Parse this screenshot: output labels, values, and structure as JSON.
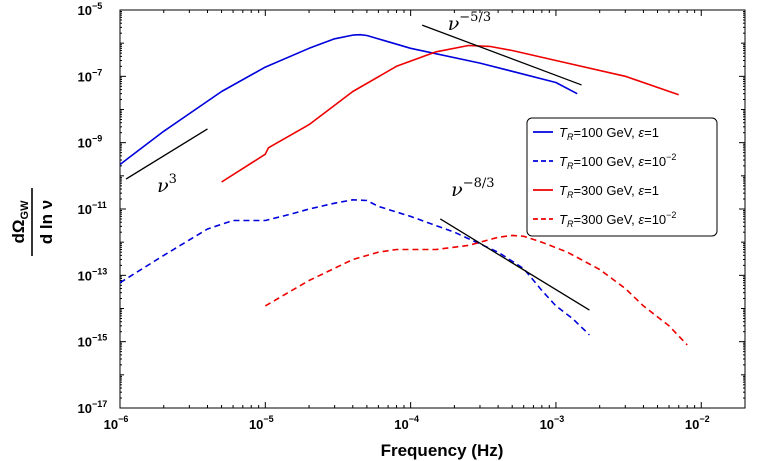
{
  "chart_data": {
    "type": "line",
    "xlabel": "Frequency (Hz)",
    "ylabel": {
      "numerator": "dΩ",
      "numerator_sub": "GW",
      "denominator": "d ln ν"
    },
    "x_scale": "log",
    "y_scale": "log",
    "xlim": [
      1e-06,
      0.02
    ],
    "ylim": [
      1e-17,
      1e-05
    ],
    "x_ticks": [
      {
        "value": 1e-06,
        "base": "10",
        "exp": "−6"
      },
      {
        "value": 1e-05,
        "base": "10",
        "exp": "−5"
      },
      {
        "value": 0.0001,
        "base": "10",
        "exp": "−4"
      },
      {
        "value": 0.001,
        "base": "10",
        "exp": "−3"
      },
      {
        "value": 0.01,
        "base": "10",
        "exp": "−2"
      }
    ],
    "y_ticks": [
      {
        "value": 1e-17,
        "base": "10",
        "exp": "−17"
      },
      {
        "value": 1e-15,
        "base": "10",
        "exp": "−15"
      },
      {
        "value": 1e-13,
        "base": "10",
        "exp": "−13"
      },
      {
        "value": 1e-11,
        "base": "10",
        "exp": "−11"
      },
      {
        "value": 1e-09,
        "base": "10",
        "exp": "−9"
      },
      {
        "value": 1e-07,
        "base": "10",
        "exp": "−7"
      },
      {
        "value": 1e-05,
        "base": "10",
        "exp": "−5"
      }
    ],
    "grid": false,
    "legend_position": "right",
    "series": [
      {
        "name": "T_R=100 GeV, ε=1",
        "legend": {
          "T": "T",
          "sub": "R",
          "rest": "=100 GeV, ",
          "eps": "ε",
          "eq": "=1",
          "exp": ""
        },
        "color": "#0000dd",
        "dash": "solid",
        "x": [
          1e-06,
          2e-06,
          5e-06,
          1e-05,
          2e-05,
          3e-05,
          4e-05,
          4.5e-05,
          5e-05,
          0.0001,
          0.0003,
          0.001,
          0.0014
        ],
        "y": [
          2.2e-10,
          2.2e-09,
          3.5e-08,
          1.9e-07,
          7e-07,
          1.35e-06,
          1.75e-06,
          1.8e-06,
          1.7e-06,
          7e-07,
          2.5e-07,
          6.5e-08,
          3e-08
        ]
      },
      {
        "name": "T_R=100 GeV, ε=10^-2",
        "legend": {
          "T": "T",
          "sub": "R",
          "rest": "=100 GeV, ",
          "eps": "ε",
          "eq": "=10",
          "exp": "−2"
        },
        "color": "#0000dd",
        "dash": "dashed",
        "x": [
          1e-06,
          2e-06,
          4e-06,
          6e-06,
          1e-05,
          1.5e-05,
          2e-05,
          3e-05,
          4e-05,
          5e-05,
          6e-05,
          0.0001,
          0.0002,
          0.0004,
          0.0006,
          0.0008,
          0.001,
          0.0013,
          0.0017
        ],
        "y": [
          6e-14,
          4e-13,
          2.5e-12,
          4.5e-12,
          4.5e-12,
          7e-12,
          1e-11,
          1.5e-11,
          1.9e-11,
          1.8e-11,
          1.2e-11,
          6e-12,
          2e-12,
          5e-13,
          1.6e-13,
          3.5e-14,
          1.2e-14,
          5e-15,
          1.6e-15
        ]
      },
      {
        "name": "T_R=300 GeV, ε=1",
        "legend": {
          "T": "T",
          "sub": "R",
          "rest": "=300 GeV, ",
          "eps": "ε",
          "eq": "=1",
          "exp": ""
        },
        "color": "#ee0000",
        "dash": "solid",
        "x": [
          5e-06,
          1e-05,
          1.05e-05,
          2e-05,
          4e-05,
          8e-05,
          0.00015,
          0.00025,
          0.00035,
          0.0005,
          0.001,
          0.003,
          0.007
        ],
        "y": [
          6.5e-11,
          4.5e-10,
          7e-10,
          3.5e-09,
          3.5e-08,
          2e-07,
          5.5e-07,
          8.5e-07,
          8e-07,
          6e-07,
          3e-07,
          1e-07,
          2.8e-08
        ]
      },
      {
        "name": "T_R=300 GeV, ε=10^-2",
        "legend": {
          "T": "T",
          "sub": "R",
          "rest": "=300 GeV, ",
          "eps": "ε",
          "eq": "=10",
          "exp": "−2"
        },
        "color": "#ee0000",
        "dash": "dashed",
        "x": [
          1e-05,
          2e-05,
          4e-05,
          6e-05,
          8e-05,
          0.0001,
          0.00015,
          0.00025,
          0.0004,
          0.0005,
          0.0006,
          0.0008,
          0.0012,
          0.002,
          0.003,
          0.004,
          0.006,
          0.008
        ],
        "y": [
          1.2e-14,
          7e-14,
          3e-13,
          5e-13,
          6e-13,
          6e-13,
          6e-13,
          8e-13,
          1.4e-12,
          1.6e-12,
          1.5e-12,
          1e-12,
          5e-13,
          1.5e-13,
          4e-14,
          1.2e-14,
          3e-15,
          8e-16
        ]
      }
    ],
    "annotations": [
      {
        "name": "nu-cubed",
        "label_base": "ν",
        "label_exp": "3",
        "line_x": [
          1.1e-06,
          4e-06
        ],
        "line_y": [
          8e-11,
          2.6e-09
        ],
        "label_x": 1.8e-06,
        "label_y": 3.2e-11
      },
      {
        "name": "nu-minus-5-3",
        "label_base": "ν",
        "label_exp": "−5/3",
        "line_x": [
          0.00012,
          0.0015
        ],
        "line_y": [
          3.5e-06,
          5.5e-08
        ],
        "label_x": 0.00018,
        "label_y": 2.5e-06
      },
      {
        "name": "nu-minus-8-3",
        "label_base": "ν",
        "label_exp": "−8/3",
        "line_x": [
          0.00016,
          0.0017
        ],
        "line_y": [
          5e-12,
          9e-15
        ],
        "label_x": 0.00019,
        "label_y": 2.5e-11
      }
    ]
  }
}
